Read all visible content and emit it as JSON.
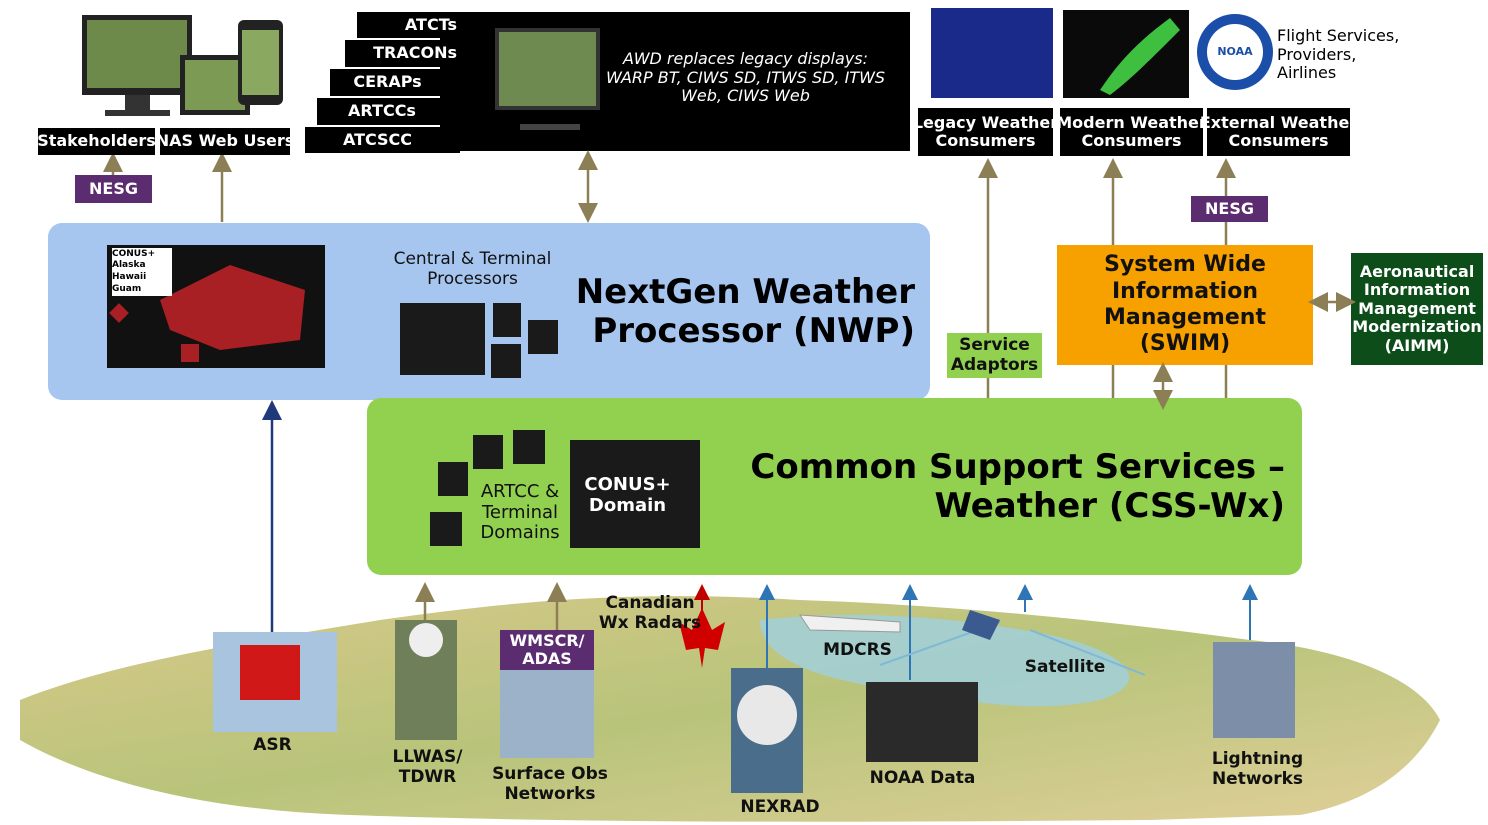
{
  "top_left": {
    "stakeholders": "Stakeholders",
    "nas_web_users": "NAS Web Users",
    "nesg": "NESG"
  },
  "atc_facilities": [
    "ATCTs",
    "TRACONs",
    "CERAPs",
    "ARTCCs",
    "ATCSCC"
  ],
  "awd_note": [
    "AWD replaces legacy displays:",
    "WARP BT, CIWS SD, ITWS SD, ITWS",
    "Web, CIWS Web"
  ],
  "consumers": {
    "legacy": [
      "Legacy Weather",
      "Consumers"
    ],
    "modern": [
      "Modern Weather",
      "Consumers"
    ],
    "external": [
      "External Weather",
      "Consumers"
    ],
    "external_note": [
      "Flight Services,",
      "Providers,",
      "Airlines"
    ],
    "noaa_logo": "NOAA"
  },
  "nwp": {
    "map_legend": [
      "CONUS+",
      "Alaska",
      "Hawaii",
      "Guam"
    ],
    "processors": [
      "Central & Terminal",
      "Processors"
    ],
    "title": [
      "NextGen Weather",
      "Processor (NWP)"
    ]
  },
  "service_adaptors": [
    "Service",
    "Adaptors"
  ],
  "nesg_right": "NESG",
  "swim": [
    "System Wide",
    "Information",
    "Management",
    "(SWIM)"
  ],
  "aimm": [
    "Aeronautical",
    "Information",
    "Management",
    "Modernization",
    "(AIMM)"
  ],
  "css": {
    "domains": [
      "ARTCC &",
      "Terminal",
      "Domains"
    ],
    "conus": [
      "CONUS+",
      "Domain"
    ],
    "title": [
      "Common Support Services –",
      "Weather (CSS-Wx)"
    ]
  },
  "sources": {
    "asr": "ASR",
    "llwas": [
      "LLWAS/",
      "TDWR"
    ],
    "wmscr": [
      "WMSCR/",
      "ADAS"
    ],
    "surface_obs": [
      "Surface Obs",
      "Networks"
    ],
    "canadian": [
      "Canadian",
      "Wx Radars"
    ],
    "nexrad": "NEXRAD",
    "mdcrs": "MDCRS",
    "noaa_data": "NOAA Data",
    "satellite": "Satellite",
    "lightning": [
      "Lightning",
      "Networks"
    ]
  }
}
